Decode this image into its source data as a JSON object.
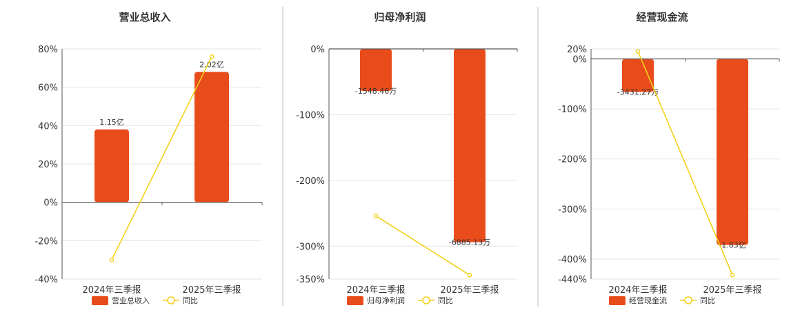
{
  "colors": {
    "bar": "#e84c1b",
    "line": "#f2d01a",
    "grid": "#e6e6e6",
    "axis": "#555555",
    "divider": "#bbbbbb"
  },
  "chart_data": [
    {
      "type": "bar",
      "title": "营业总收入",
      "categories": [
        "2024年三季报",
        "2025年三季报"
      ],
      "yaxis": {
        "ticks": [
          80,
          60,
          40,
          20,
          0,
          -20,
          -40
        ],
        "tick_labels": [
          "80%",
          "60%",
          "40%",
          "20%",
          "0%",
          "-20%",
          "-40%"
        ],
        "ylim": [
          -40,
          80
        ]
      },
      "series": [
        {
          "name": "营业总收入",
          "kind": "bar",
          "values": [
            38,
            68
          ],
          "labels": [
            "1.15亿",
            "2.02亿"
          ]
        },
        {
          "name": "同比",
          "kind": "line",
          "values": [
            -30,
            76
          ]
        }
      ],
      "legend": [
        "营业总收入",
        "同比"
      ],
      "legend_position": "bottom"
    },
    {
      "type": "bar",
      "title": "归母净利润",
      "categories": [
        "2024年三季报",
        "2025年三季报"
      ],
      "yaxis": {
        "ticks": [
          0,
          -100,
          -200,
          -300,
          -350
        ],
        "tick_labels": [
          "0%",
          "-100%",
          "-200%",
          "-300%",
          "-350%"
        ],
        "ylim": [
          -350,
          0
        ]
      },
      "series": [
        {
          "name": "归母净利润",
          "kind": "bar",
          "values": [
            -64,
            -294
          ],
          "labels": [
            "-1548.46万",
            "-6885.13万"
          ]
        },
        {
          "name": "同比",
          "kind": "line",
          "values": [
            -254,
            -344
          ]
        }
      ],
      "legend": [
        "归母净利润",
        "同比"
      ],
      "legend_position": "bottom"
    },
    {
      "type": "bar",
      "title": "经营现金流",
      "categories": [
        "2024年三季报",
        "2025年三季报"
      ],
      "yaxis": {
        "ticks": [
          20,
          0,
          -100,
          -200,
          -300,
          -400,
          -440
        ],
        "tick_labels": [
          "20%",
          "0%",
          "-100%",
          "-200%",
          "-300%",
          "-400%",
          "-440%"
        ],
        "ylim": [
          -440,
          20
        ]
      },
      "series": [
        {
          "name": "经营现金流",
          "kind": "bar",
          "values": [
            -66,
            -372
          ],
          "labels": [
            "-3431.27万",
            "-1.83亿"
          ]
        },
        {
          "name": "同比",
          "kind": "line",
          "values": [
            15,
            -432
          ]
        }
      ],
      "legend": [
        "经营现金流",
        "同比"
      ],
      "legend_position": "bottom"
    }
  ]
}
